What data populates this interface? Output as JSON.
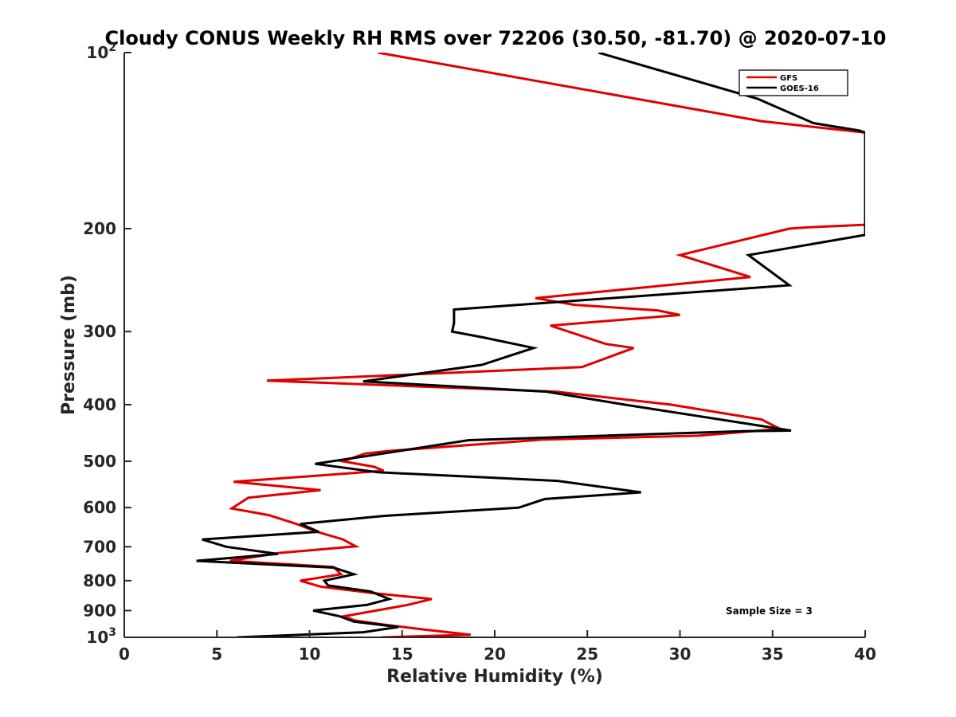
{
  "chart_data": {
    "type": "line",
    "title": "Cloudy CONUS Weekly RH RMS over 72206 (30.50, -81.70) @ 2020-07-10",
    "xlabel": "Relative Humidity (%)",
    "ylabel": "Pressure (mb)",
    "xlim": [
      0,
      40
    ],
    "ylim": [
      100,
      1000
    ],
    "yscale": "log",
    "y_reversed": true,
    "x_ticks": [
      0,
      5,
      10,
      15,
      20,
      25,
      30,
      35,
      40
    ],
    "y_ticks": [
      {
        "value": 100,
        "base": "10",
        "exp": "2"
      },
      {
        "value": 200,
        "label": "200"
      },
      {
        "value": 300,
        "label": "300"
      },
      {
        "value": 400,
        "label": "400"
      },
      {
        "value": 500,
        "label": "500"
      },
      {
        "value": 600,
        "label": "600"
      },
      {
        "value": 700,
        "label": "700"
      },
      {
        "value": 800,
        "label": "800"
      },
      {
        "value": 900,
        "label": "900"
      },
      {
        "value": 1000,
        "base": "10",
        "exp": "3"
      }
    ],
    "legend_position": "top-right",
    "annotation": "Sample Size = 3",
    "series": [
      {
        "name": "GFS",
        "color": "#e00000",
        "points": [
          [
            13.7,
            100
          ],
          [
            34.4,
            131
          ],
          [
            40,
            137
          ],
          [
            40,
            197
          ],
          [
            36.9,
            199
          ],
          [
            35.9,
            200
          ],
          [
            30.0,
            222
          ],
          [
            33.8,
            242
          ],
          [
            22.2,
            263
          ],
          [
            24.3,
            270
          ],
          [
            28.8,
            276
          ],
          [
            30.0,
            281
          ],
          [
            23.0,
            293
          ],
          [
            26.0,
            315
          ],
          [
            27.5,
            320
          ],
          [
            24.7,
            345
          ],
          [
            7.7,
            364
          ],
          [
            23.3,
            380
          ],
          [
            29.5,
            400
          ],
          [
            34.4,
            424
          ],
          [
            35.4,
            440
          ],
          [
            31.0,
            452
          ],
          [
            22.6,
            459
          ],
          [
            14.3,
            480
          ],
          [
            13.0,
            485
          ],
          [
            11.8,
            500
          ],
          [
            13.5,
            511
          ],
          [
            14.0,
            519
          ],
          [
            5.9,
            542
          ],
          [
            10.6,
            560
          ],
          [
            6.7,
            577
          ],
          [
            5.8,
            602
          ],
          [
            7.8,
            618
          ],
          [
            9.3,
            640
          ],
          [
            10.4,
            660
          ],
          [
            11.8,
            680
          ],
          [
            12.5,
            699
          ],
          [
            8.4,
            717
          ],
          [
            5.7,
            740
          ],
          [
            11.3,
            758
          ],
          [
            11.7,
            780
          ],
          [
            9.5,
            800
          ],
          [
            10.6,
            819
          ],
          [
            13.4,
            840
          ],
          [
            16.6,
            860
          ],
          [
            15.3,
            880
          ],
          [
            13.6,
            900
          ],
          [
            11.9,
            920
          ],
          [
            12.4,
            935
          ],
          [
            14.0,
            951
          ],
          [
            16.2,
            970
          ],
          [
            18.7,
            990
          ],
          [
            13.9,
            1000
          ]
        ]
      },
      {
        "name": "GOES-16",
        "color": "#000000",
        "points": [
          [
            25.6,
            100
          ],
          [
            34.2,
            120
          ],
          [
            37.2,
            132
          ],
          [
            39.7,
            136
          ],
          [
            40,
            137
          ],
          [
            40,
            205
          ],
          [
            33.7,
            222
          ],
          [
            35.9,
            250
          ],
          [
            17.8,
            275
          ],
          [
            17.8,
            290
          ],
          [
            17.7,
            300
          ],
          [
            19.4,
            307
          ],
          [
            22.1,
            320
          ],
          [
            19.3,
            342
          ],
          [
            12.9,
            365
          ],
          [
            22.8,
            380
          ],
          [
            27.0,
            400
          ],
          [
            33.4,
            430
          ],
          [
            36.0,
            443
          ],
          [
            33.4,
            444
          ],
          [
            18.6,
            460
          ],
          [
            13.4,
            488
          ],
          [
            10.3,
            505
          ],
          [
            13.7,
            522
          ],
          [
            23.4,
            540
          ],
          [
            27.9,
            565
          ],
          [
            22.7,
            580
          ],
          [
            21.3,
            600
          ],
          [
            14.0,
            620
          ],
          [
            9.5,
            640
          ],
          [
            10.5,
            660
          ],
          [
            4.2,
            680
          ],
          [
            5.5,
            700
          ],
          [
            8.3,
            720
          ],
          [
            3.9,
            740
          ],
          [
            11.3,
            760
          ],
          [
            12.4,
            780
          ],
          [
            10.8,
            800
          ],
          [
            11.0,
            815
          ],
          [
            13.3,
            835
          ],
          [
            14.3,
            860
          ],
          [
            13.1,
            880
          ],
          [
            10.2,
            900
          ],
          [
            11.6,
            920
          ],
          [
            12.4,
            940
          ],
          [
            14.8,
            960
          ],
          [
            12.9,
            980
          ],
          [
            6.1,
            1000
          ]
        ]
      }
    ]
  }
}
